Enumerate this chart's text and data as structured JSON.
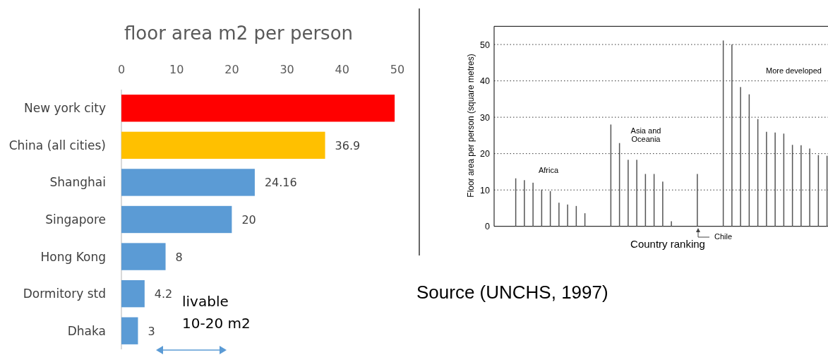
{
  "chart_data": [
    {
      "type": "bar",
      "orientation": "horizontal",
      "title": "floor area m2 per person",
      "categories": [
        "New york city",
        "China (all cities)",
        "Shanghai",
        "Singapore",
        "Hong Kong",
        "Dormitory std",
        "Dhaka"
      ],
      "values": [
        49.5,
        36.9,
        24.16,
        20,
        8,
        4.2,
        3
      ],
      "colors": [
        "#ff0000",
        "#ffc000",
        "#5b9bd5",
        "#5b9bd5",
        "#5b9bd5",
        "#5b9bd5",
        "#5b9bd5"
      ],
      "value_labels": [
        null,
        "36.9",
        "24.16",
        "20",
        "8",
        "4.2",
        "3"
      ],
      "xlim": [
        0,
        50
      ],
      "xticks": [
        0,
        10,
        20,
        30,
        40,
        50
      ],
      "annotations": [
        "livable 10-20 m2"
      ]
    },
    {
      "type": "bar",
      "xlabel": "Country ranking",
      "ylabel": "Floor area per person (square metres)",
      "categories": [
        null,
        null,
        null,
        null,
        null,
        null,
        null,
        null,
        null,
        null,
        null,
        null,
        null,
        null,
        null,
        null,
        null,
        null,
        null,
        null,
        null,
        null,
        null,
        null,
        null,
        null,
        null,
        null,
        null,
        null,
        null,
        null,
        null,
        null,
        null,
        null,
        null,
        null,
        null
      ],
      "values": [
        null,
        null,
        13.2,
        12.7,
        12.0,
        10.1,
        9.7,
        6.5,
        6.0,
        5.6,
        3.6,
        null,
        null,
        28.0,
        22.9,
        18.3,
        18.3,
        14.4,
        14.4,
        12.3,
        1.4,
        null,
        null,
        14.4,
        null,
        null,
        51.1,
        50.0,
        38.3,
        36.3,
        29.5,
        26.0,
        25.8,
        25.5,
        22.4,
        22.3,
        21.4,
        19.6,
        19.4
      ],
      "color": "#555555",
      "ylim": [
        0,
        55
      ],
      "yticks": [
        0,
        10,
        20,
        30,
        40,
        50
      ],
      "grid": "y",
      "line_style": "dotted",
      "annotations": [
        "Africa",
        "Asia and Oceania",
        "Chile",
        "More developed",
        "Source (UNCHS, 1997)"
      ]
    }
  ]
}
